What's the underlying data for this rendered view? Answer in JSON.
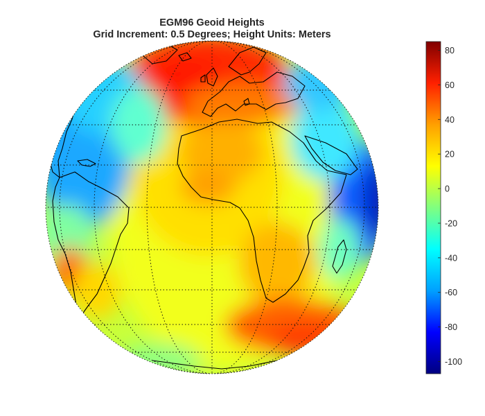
{
  "title": {
    "line1": "EGM96 Geoid Heights",
    "line2": "Grid Increment: 0.5 Degrees; Height Units: Meters"
  },
  "colorbar": {
    "min": -107,
    "max": 85,
    "ticks": [
      "80",
      "60",
      "40",
      "20",
      "0",
      "-20",
      "-40",
      "-60",
      "-80",
      "-100"
    ],
    "colormap": [
      "#000080",
      "#0000ff",
      "#00a0ff",
      "#00ffff",
      "#80ff80",
      "#ffff00",
      "#ffa000",
      "#ff2000",
      "#800000"
    ]
  },
  "map": {
    "projection": "orthographic",
    "center": "0°N, 0°E",
    "graticule": "dotted",
    "coastlines": true
  }
}
